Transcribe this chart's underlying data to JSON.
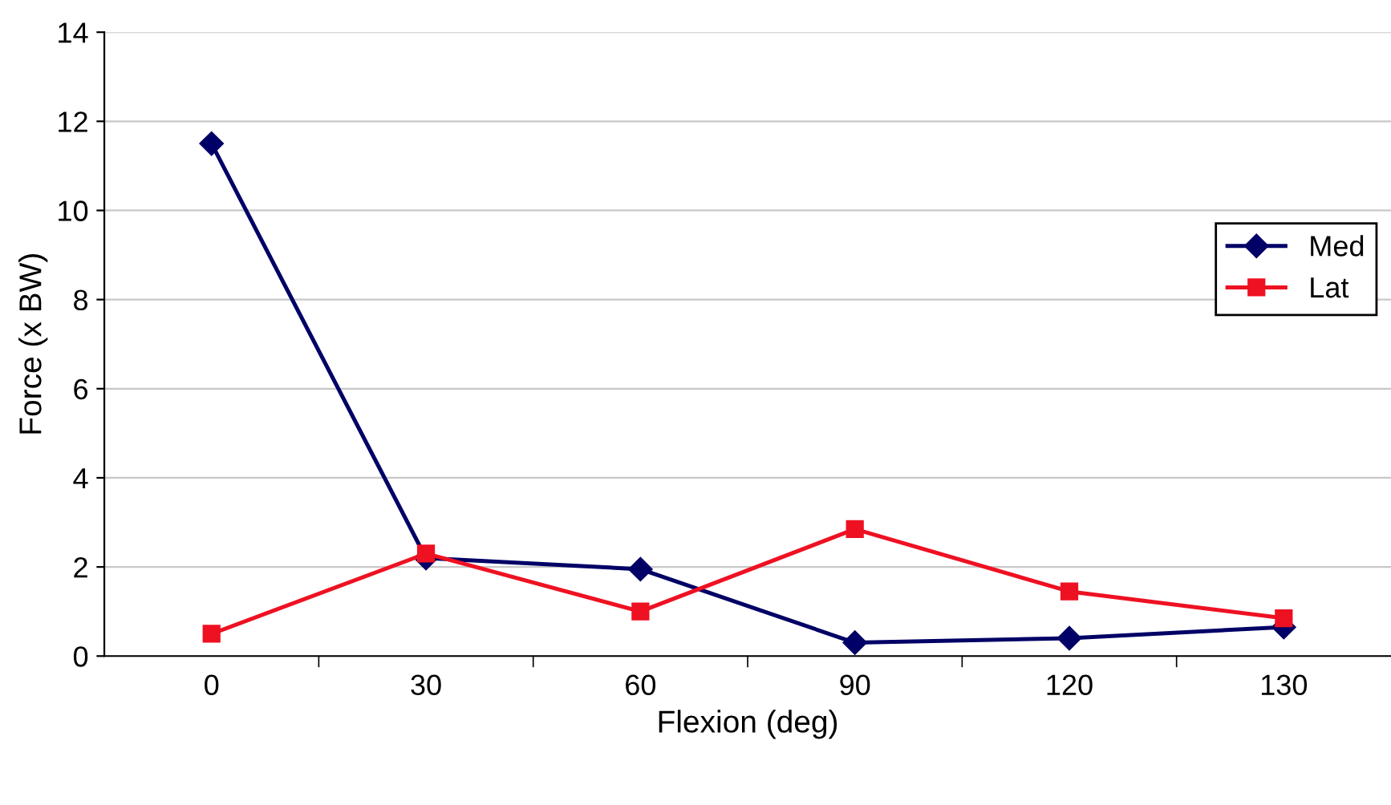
{
  "chart_data": {
    "type": "line",
    "xlabel": "Flexion (deg)",
    "ylabel": "Force (x BW)",
    "categories": [
      "0",
      "30",
      "60",
      "90",
      "120",
      "130"
    ],
    "series": [
      {
        "name": "Med",
        "color": "#000066",
        "marker": "diamond",
        "values": [
          11.5,
          2.2,
          1.95,
          0.3,
          0.4,
          0.65
        ]
      },
      {
        "name": "Lat",
        "color": "#ee1122",
        "marker": "square",
        "values": [
          0.5,
          2.3,
          1.0,
          2.85,
          1.45,
          0.85
        ]
      }
    ],
    "ylim": [
      0,
      14
    ],
    "yticks": [
      0,
      2,
      4,
      6,
      8,
      10,
      12,
      14
    ],
    "grid": "y",
    "legend": "right",
    "line_style": "solid"
  }
}
